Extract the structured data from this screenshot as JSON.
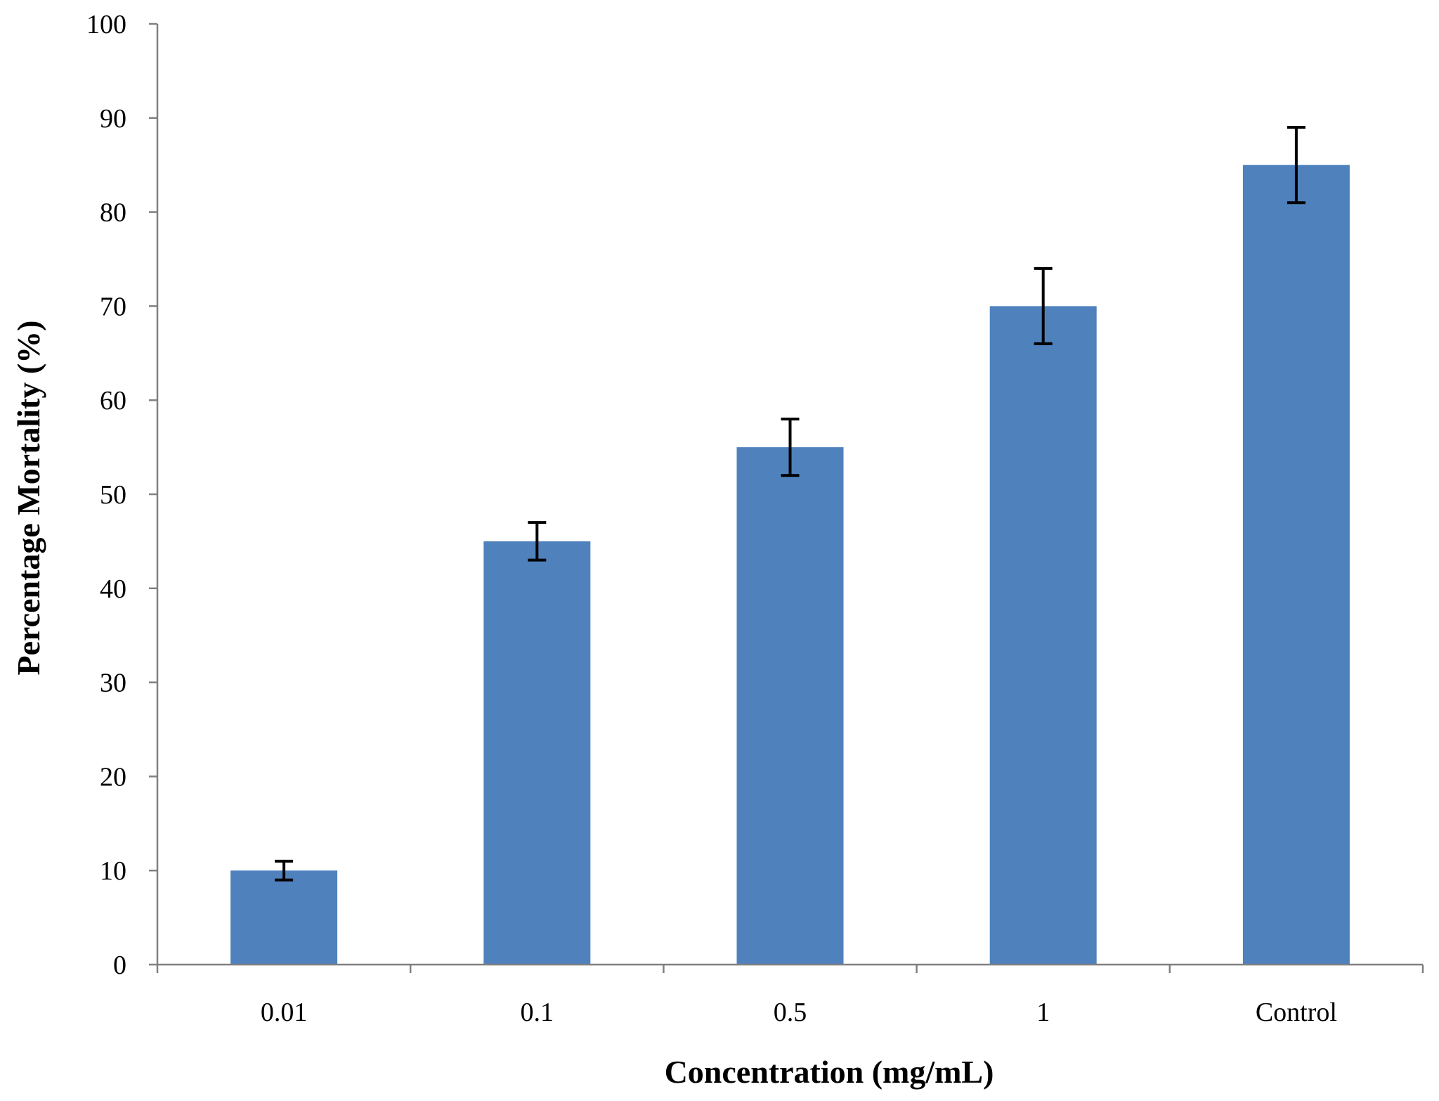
{
  "chart_data": {
    "type": "bar",
    "title": "",
    "xlabel": "Concentration (mg/mL)",
    "ylabel": "Percentage Mortality (%)",
    "categories": [
      "0.01",
      "0.1",
      "0.5",
      "1",
      "Control"
    ],
    "values": [
      10,
      45,
      55,
      70,
      85
    ],
    "errors": [
      1,
      2,
      3,
      4,
      4
    ],
    "ylim": [
      0,
      100
    ],
    "yticks": [
      "0",
      "10",
      "20",
      "30",
      "40",
      "50",
      "60",
      "70",
      "80",
      "90",
      "100"
    ],
    "grid": false,
    "legend": "none",
    "bar_color": "#4f81bd",
    "error_bar_color": "#000000",
    "axis_color": "#808080"
  }
}
